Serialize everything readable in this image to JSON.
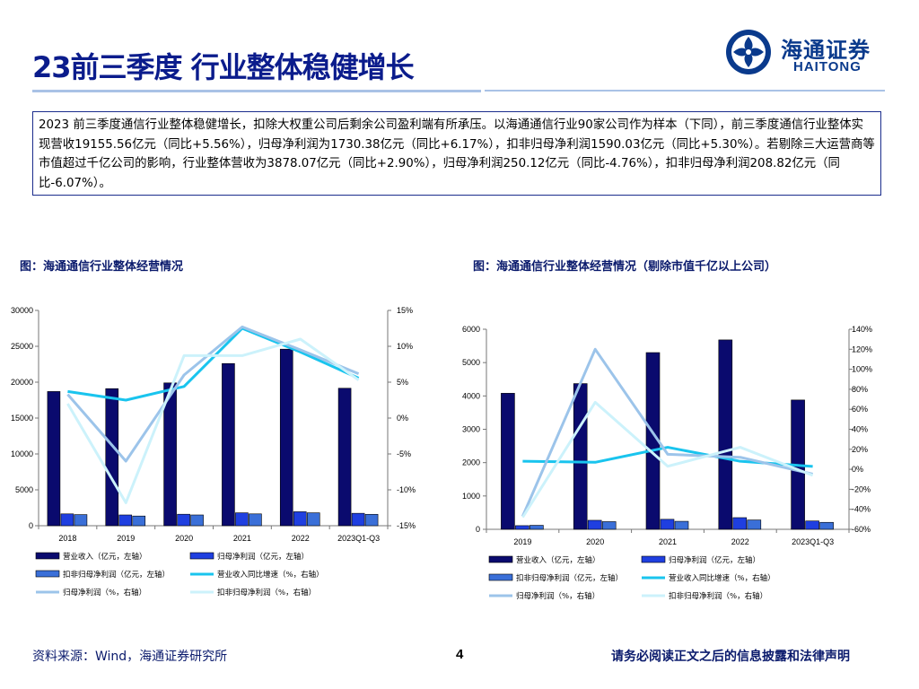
{
  "page": {
    "title": "23前三季度 行业整体稳健增长",
    "logo": {
      "cn": "海通证券",
      "en": "HAITONG"
    },
    "summary": "2023 前三季度通信行业整体稳健增长，扣除大权重公司后剩余公司盈利端有所承压。以海通通信行业90家公司作为样本（下同），前三季度通信行业整体实现营收19155.56亿元（同比+5.56%），归母净利润为1730.38亿元（同比+6.17%），扣非归母净利润1590.03亿元（同比+5.30%）。若剔除三大运营商等市值超过千亿公司的影响，行业整体营收为3878.07亿元（同比+2.90%），归母净利润250.12亿元（同比-4.76%），扣非归母净利润208.82亿元（同比-6.07%）。",
    "footer": {
      "source": "资料来源：Wind，海通证券研究所",
      "page_number": "4",
      "disclaimer": "请务必阅读正文之后的信息披露和法律声明"
    }
  },
  "colors": {
    "title": "#0b1c8c",
    "bar_revenue": "#0a0a6e",
    "bar_net": "#1f3fe0",
    "bar_deducted": "#3a6fd8",
    "line_revenue_yoy": "#19c4ee",
    "line_net_yoy": "#9cc4ea",
    "line_deducted_yoy": "#ccf2fb"
  },
  "chart_data": [
    {
      "type": "bar",
      "caption": "图：海通通信行业整体经营情况",
      "categories": [
        "2018",
        "2019",
        "2020",
        "2021",
        "2022",
        "2023Q1-Q3"
      ],
      "ylim_left": [
        0,
        30000
      ],
      "yticks_left": [
        "0",
        "5000",
        "10000",
        "15000",
        "20000",
        "25000",
        "30000"
      ],
      "ylim_right": [
        -15,
        15
      ],
      "yticks_right": [
        "-15%",
        "-10%",
        "-5%",
        "0%",
        "5%",
        "10%",
        "15%"
      ],
      "bar_series": [
        {
          "name": "营业收入（亿元，左轴）",
          "color_key": "bar_revenue",
          "values": [
            18700,
            19100,
            19900,
            22600,
            24600,
            19155.56
          ]
        },
        {
          "name": "归母净利润（亿元，左轴）",
          "color_key": "bar_net",
          "values": [
            1650,
            1500,
            1600,
            1800,
            1950,
            1730.38
          ]
        },
        {
          "name": "扣非归母净利润（亿元，左轴）",
          "color_key": "bar_deducted",
          "values": [
            1550,
            1350,
            1500,
            1650,
            1800,
            1590.03
          ]
        }
      ],
      "line_series": [
        {
          "name": "营业收入同比增速（%，右轴）",
          "color_key": "line_revenue_yoy",
          "values": [
            3.7,
            2.5,
            4.4,
            12.5,
            9.2,
            5.56
          ]
        },
        {
          "name": "归母净利润（%，右轴）",
          "color_key": "line_net_yoy",
          "values": [
            3.3,
            -6.0,
            6.0,
            12.7,
            9.5,
            6.17
          ]
        },
        {
          "name": "扣非归母净利润（%，右轴）",
          "color_key": "line_deducted_yoy",
          "values": [
            2.0,
            -11.8,
            8.7,
            8.7,
            11.0,
            5.3
          ]
        }
      ],
      "legend": [
        "营业收入（亿元，左轴）",
        "归母净利润（亿元，左轴）",
        "扣非归母净利润（亿元，左轴）",
        "营业收入同比增速（%，右轴）",
        "归母净利润（%，右轴）",
        "扣非归母净利润（%，右轴）"
      ],
      "legend_position": "bottom",
      "grid": false
    },
    {
      "type": "bar",
      "caption": "图：海通通信行业整体经营情况（剔除市值千亿以上公司）",
      "categories": [
        "2019",
        "2020",
        "2021",
        "2022",
        "2023Q1-Q3"
      ],
      "ylim_left": [
        0,
        6000
      ],
      "yticks_left": [
        "0",
        "1000",
        "2000",
        "3000",
        "4000",
        "5000",
        "6000"
      ],
      "ylim_right": [
        -60,
        140
      ],
      "yticks_right": [
        "-60%",
        "-40%",
        "-20%",
        "0%",
        "20%",
        "40%",
        "60%",
        "80%",
        "100%",
        "120%",
        "140%"
      ],
      "bar_series": [
        {
          "name": "营业收入（亿元，左轴）",
          "color_key": "bar_revenue",
          "values": [
            4080,
            4370,
            5300,
            5680,
            3878.07
          ]
        },
        {
          "name": "归母净利润（亿元，左轴）",
          "color_key": "bar_net",
          "values": [
            110,
            270,
            300,
            350,
            250.12
          ]
        },
        {
          "name": "扣非归母净利润（亿元，左轴）",
          "color_key": "bar_deducted",
          "values": [
            120,
            230,
            240,
            280,
            208.82
          ]
        }
      ],
      "line_series": [
        {
          "name": "营业收入同比增速（%，右轴）",
          "color_key": "line_revenue_yoy",
          "values": [
            8,
            7,
            22,
            8,
            2.9
          ]
        },
        {
          "name": "归母净利润（%，右轴）",
          "color_key": "line_net_yoy",
          "values": [
            -47,
            120,
            15,
            12,
            -4.76
          ]
        },
        {
          "name": "扣非归母净利润（%，右轴）",
          "color_key": "line_deducted_yoy",
          "values": [
            -48,
            67,
            3,
            22,
            -6.07
          ]
        }
      ],
      "legend": [
        "营业收入（亿元，左轴）",
        "归母净利润（亿元，左轴）",
        "扣非归母净利润（亿元，左轴）",
        "营业收入同比增速（%，右轴）",
        "归母净利润（%，右轴）",
        "扣非归母净利润（%，右轴）"
      ],
      "legend_position": "bottom",
      "grid": false
    }
  ]
}
